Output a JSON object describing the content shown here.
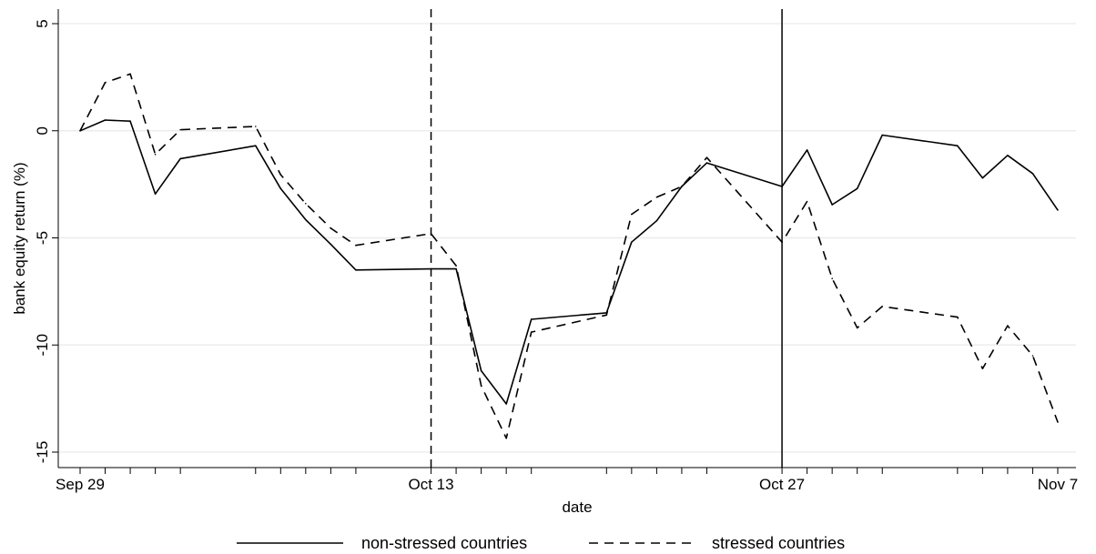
{
  "chart_data": {
    "type": "line",
    "title": "",
    "xlabel": "date",
    "ylabel": "bank equity return (%)",
    "ylim": [
      -15,
      5
    ],
    "yticks": [
      5,
      0,
      -5,
      -10,
      -15
    ],
    "ytick_labels": [
      "5",
      "0",
      "-5",
      "-10",
      "-15"
    ],
    "x_domain": [
      "2008-09-29",
      "2008-11-07"
    ],
    "xtick_labels": [
      {
        "date": "2008-09-29",
        "label": "Sep 29"
      },
      {
        "date": "2008-10-13",
        "label": "Oct 13"
      },
      {
        "date": "2008-10-27",
        "label": "Oct 27"
      },
      {
        "date": "2008-11-07",
        "label": "Nov 7"
      }
    ],
    "minor_tick_dates": [
      "2008-09-30",
      "2008-10-01",
      "2008-10-02",
      "2008-10-03",
      "2008-10-06",
      "2008-10-07",
      "2008-10-08",
      "2008-10-09",
      "2008-10-10",
      "2008-10-14",
      "2008-10-15",
      "2008-10-16",
      "2008-10-17",
      "2008-10-20",
      "2008-10-21",
      "2008-10-22",
      "2008-10-23",
      "2008-10-24",
      "2008-10-28",
      "2008-10-29",
      "2008-10-30",
      "2008-10-31",
      "2008-11-03",
      "2008-11-04",
      "2008-11-05",
      "2008-11-06"
    ],
    "x": [
      "2008-09-29",
      "2008-09-30",
      "2008-10-01",
      "2008-10-02",
      "2008-10-03",
      "2008-10-06",
      "2008-10-07",
      "2008-10-08",
      "2008-10-09",
      "2008-10-10",
      "2008-10-13",
      "2008-10-14",
      "2008-10-15",
      "2008-10-16",
      "2008-10-17",
      "2008-10-20",
      "2008-10-21",
      "2008-10-22",
      "2008-10-23",
      "2008-10-24",
      "2008-10-27",
      "2008-10-28",
      "2008-10-29",
      "2008-10-30",
      "2008-10-31",
      "2008-11-03",
      "2008-11-04",
      "2008-11-05",
      "2008-11-06",
      "2008-11-07"
    ],
    "series": [
      {
        "name": "non-stressed countries",
        "dash": "solid",
        "values": [
          0.0,
          0.5,
          0.45,
          -2.95,
          -1.3,
          -0.7,
          -2.7,
          -4.15,
          -5.3,
          -6.5,
          -6.45,
          -6.45,
          -11.2,
          -12.75,
          -8.8,
          -8.5,
          -5.2,
          -4.2,
          -2.6,
          -1.5,
          -2.6,
          -0.9,
          -3.45,
          -2.7,
          -0.2,
          -0.7,
          -2.2,
          -1.15,
          -2.0,
          -3.7
        ]
      },
      {
        "name": "stressed countries",
        "dash": "dashed",
        "values": [
          0.0,
          2.25,
          2.65,
          -1.1,
          0.05,
          0.2,
          -2.05,
          -3.4,
          -4.55,
          -5.35,
          -4.8,
          -6.3,
          -11.9,
          -14.35,
          -9.4,
          -8.6,
          -3.9,
          -3.1,
          -2.6,
          -1.25,
          -5.2,
          -3.3,
          -6.9,
          -9.2,
          -8.2,
          -8.7,
          -11.1,
          -9.1,
          -10.5,
          -13.6
        ]
      }
    ],
    "vertical_lines": [
      {
        "date": "2008-10-13",
        "dash": "dashed"
      },
      {
        "date": "2008-10-27",
        "dash": "solid"
      }
    ],
    "grid": "horizontal",
    "legend": "bottom-center"
  }
}
